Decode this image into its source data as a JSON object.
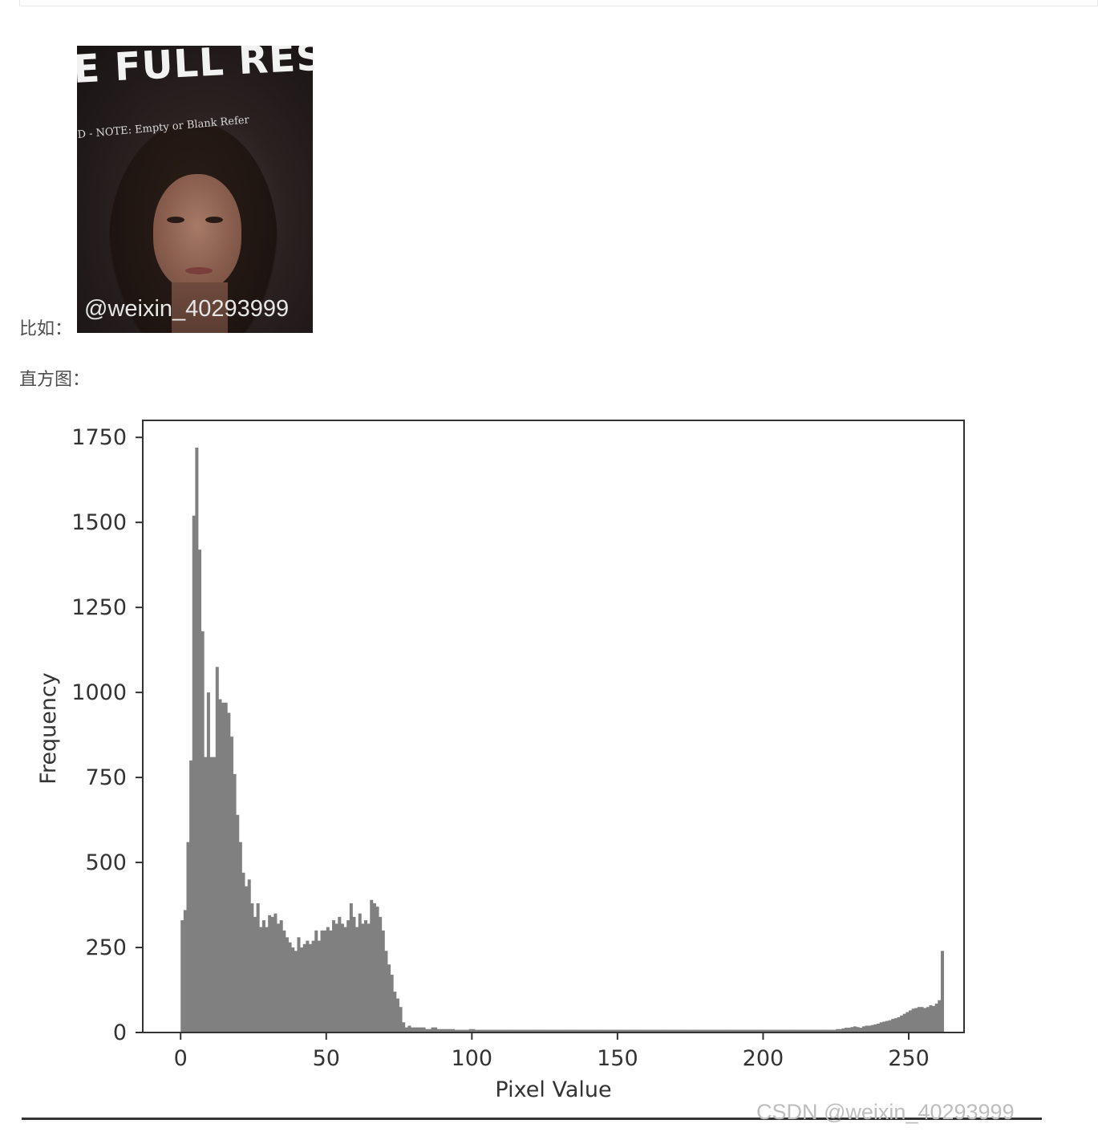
{
  "text": {
    "example_label": "比如：",
    "histogram_label": "直方图：",
    "photo_banner_big": "E FULL RESO",
    "photo_banner_small": "D - NOTE: Empty or Blank Refer",
    "photo_watermark": "@weixin_40293999",
    "page_watermark": "CSDN @weixin_40293999"
  },
  "colors": {
    "bar": "#808080",
    "axis": "#333333",
    "text": "#333333"
  },
  "chart_data": {
    "type": "bar",
    "title": "",
    "xlabel": "Pixel Value",
    "ylabel": "Frequency",
    "xlim": [
      -13,
      269
    ],
    "ylim": [
      0,
      1800
    ],
    "xticks": [
      0,
      50,
      100,
      150,
      200,
      250
    ],
    "yticks": [
      0,
      250,
      500,
      750,
      1000,
      1250,
      1500,
      1750
    ],
    "grid": false,
    "legend": "none",
    "bin_width": 1,
    "bins_start": 0,
    "values": [
      330,
      360,
      560,
      800,
      1520,
      1720,
      1420,
      1180,
      810,
      1000,
      810,
      810,
      1075,
      980,
      970,
      970,
      940,
      870,
      760,
      640,
      560,
      470,
      430,
      450,
      380,
      340,
      380,
      310,
      330,
      310,
      345,
      340,
      350,
      320,
      330,
      300,
      280,
      265,
      250,
      240,
      280,
      250,
      260,
      270,
      260,
      270,
      300,
      270,
      300,
      300,
      310,
      300,
      330,
      320,
      340,
      320,
      310,
      330,
      380,
      340,
      310,
      350,
      320,
      330,
      320,
      390,
      380,
      370,
      340,
      300,
      240,
      200,
      170,
      120,
      100,
      75,
      30,
      15,
      20,
      15,
      15,
      15,
      15,
      15,
      10,
      10,
      15,
      15,
      10,
      10,
      10,
      10,
      10,
      10,
      8,
      8,
      8,
      8,
      8,
      10,
      10,
      8,
      8,
      8,
      8,
      8,
      8,
      8,
      8,
      8,
      8,
      8,
      8,
      8,
      8,
      8,
      8,
      8,
      8,
      8,
      8,
      8,
      8,
      8,
      8,
      8,
      8,
      8,
      8,
      8,
      8,
      8,
      8,
      8,
      8,
      8,
      8,
      8,
      8,
      8,
      8,
      8,
      8,
      8,
      8,
      8,
      8,
      8,
      8,
      8,
      8,
      8,
      8,
      8,
      8,
      8,
      8,
      8,
      8,
      8,
      8,
      8,
      8,
      8,
      8,
      8,
      8,
      8,
      8,
      8,
      8,
      8,
      8,
      8,
      8,
      8,
      8,
      8,
      8,
      8,
      8,
      8,
      8,
      8,
      8,
      8,
      8,
      8,
      8,
      8,
      8,
      8,
      8,
      8,
      8,
      8,
      8,
      8,
      8,
      8,
      8,
      8,
      8,
      8,
      8,
      8,
      8,
      8,
      8,
      8,
      8,
      8,
      8,
      8,
      8,
      8,
      8,
      8,
      8,
      8,
      8,
      8,
      8,
      8,
      8,
      10,
      10,
      12,
      14,
      14,
      16,
      18,
      16,
      14,
      18,
      20,
      20,
      22,
      24,
      26,
      30,
      32,
      34,
      36,
      40,
      42,
      45,
      50,
      55,
      60,
      65,
      70,
      72,
      75,
      75,
      72,
      75,
      80,
      78,
      85,
      95,
      240
    ]
  }
}
